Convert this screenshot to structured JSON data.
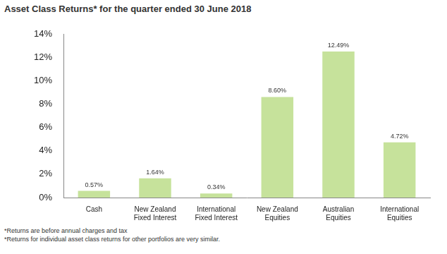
{
  "chart_data": {
    "type": "bar",
    "title": "Asset Class Returns* for the quarter ended 30 June 2018",
    "annotations": [
      "*Returns are before annual charges and tax",
      "*Returns for individual asset class returns for other portfolios are very similar."
    ],
    "categories": [
      "Cash",
      "New Zealand Fixed Interest",
      "International Fixed Interest",
      "New Zealand Equities",
      "Australian Equities",
      "International Equities"
    ],
    "values": [
      0.57,
      1.64,
      0.34,
      8.6,
      12.49,
      4.72
    ],
    "value_labels": [
      "0.57%",
      "1.64%",
      "0.34%",
      "8.60%",
      "12.49%",
      "4.72%"
    ],
    "color": "#c6e29b",
    "ylim": [
      0,
      14
    ],
    "yticks": [
      {
        "value": 0,
        "label": "0%"
      },
      {
        "value": 2,
        "label": "2%"
      },
      {
        "value": 4,
        "label": "4%"
      },
      {
        "value": 6,
        "label": "6%"
      },
      {
        "value": 8,
        "label": "8%"
      },
      {
        "value": 10,
        "label": "10%"
      },
      {
        "value": 12,
        "label": "12%"
      },
      {
        "value": 14,
        "label": "14%"
      }
    ],
    "grid": false,
    "data_labels": true
  }
}
